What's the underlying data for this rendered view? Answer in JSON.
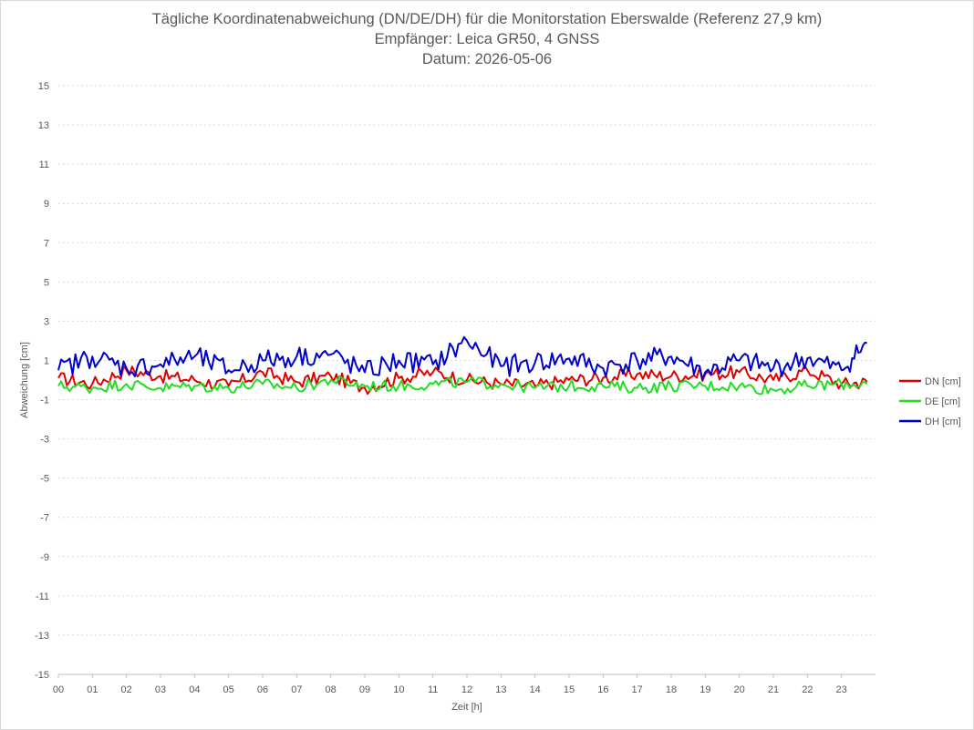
{
  "chart_data": {
    "type": "line",
    "title_lines": [
      "Tägliche Koordinatenabweichung (DN/DE/DH) für die Monitorstation Eberswalde (Referenz 27,9 km)",
      "Empfänger: Leica GR50, 4 GNSS",
      "Datum: 2026-05-06"
    ],
    "xlabel": "Zeit [h]",
    "ylabel": "Abweichung [cm]",
    "ylim": [
      -15,
      15
    ],
    "yticks": [
      "15",
      "13",
      "11",
      "9",
      "7",
      "5",
      "3",
      "1",
      "-1",
      "-3",
      "-5",
      "-7",
      "-9",
      "-11",
      "-13",
      "-15"
    ],
    "xlim": [
      0,
      24
    ],
    "xticks": [
      "00",
      "01",
      "02",
      "03",
      "04",
      "05",
      "06",
      "07",
      "08",
      "09",
      "10",
      "11",
      "12",
      "13",
      "14",
      "15",
      "16",
      "17",
      "18",
      "19",
      "20",
      "21",
      "22",
      "23"
    ],
    "grid": true,
    "legend_position": "right",
    "x": [
      0,
      1,
      2,
      3,
      4,
      5,
      6,
      7,
      8,
      9,
      10,
      11,
      12,
      13,
      14,
      15,
      16,
      17,
      18,
      19,
      20,
      21,
      22,
      23,
      23.75
    ],
    "series": [
      {
        "name": "DN [cm]",
        "color": "#e00000",
        "values": [
          0.1,
          -0.2,
          0.5,
          0.2,
          0.0,
          -0.3,
          0.4,
          -0.1,
          0.2,
          -0.4,
          0.1,
          0.4,
          0.0,
          -0.2,
          -0.3,
          0.0,
          0.1,
          0.3,
          0.2,
          0.3,
          0.4,
          0.0,
          0.5,
          -0.2,
          -0.1
        ]
      },
      {
        "name": "DE [cm]",
        "color": "#22dd22",
        "values": [
          -0.3,
          -0.4,
          -0.2,
          -0.4,
          -0.3,
          -0.4,
          -0.2,
          -0.4,
          0.0,
          -0.3,
          -0.3,
          -0.2,
          -0.1,
          -0.2,
          -0.4,
          -0.3,
          -0.3,
          -0.4,
          -0.3,
          -0.3,
          -0.3,
          -0.5,
          -0.3,
          -0.2,
          -0.2
        ]
      },
      {
        "name": "DH [cm]",
        "color": "#0000cc",
        "values": [
          0.5,
          1.2,
          0.6,
          0.8,
          1.2,
          0.5,
          1.0,
          1.2,
          1.3,
          0.4,
          1.0,
          0.8,
          2.0,
          0.7,
          0.9,
          1.1,
          0.6,
          1.0,
          1.2,
          0.4,
          1.0,
          0.6,
          1.1,
          0.5,
          1.9
        ]
      }
    ]
  }
}
